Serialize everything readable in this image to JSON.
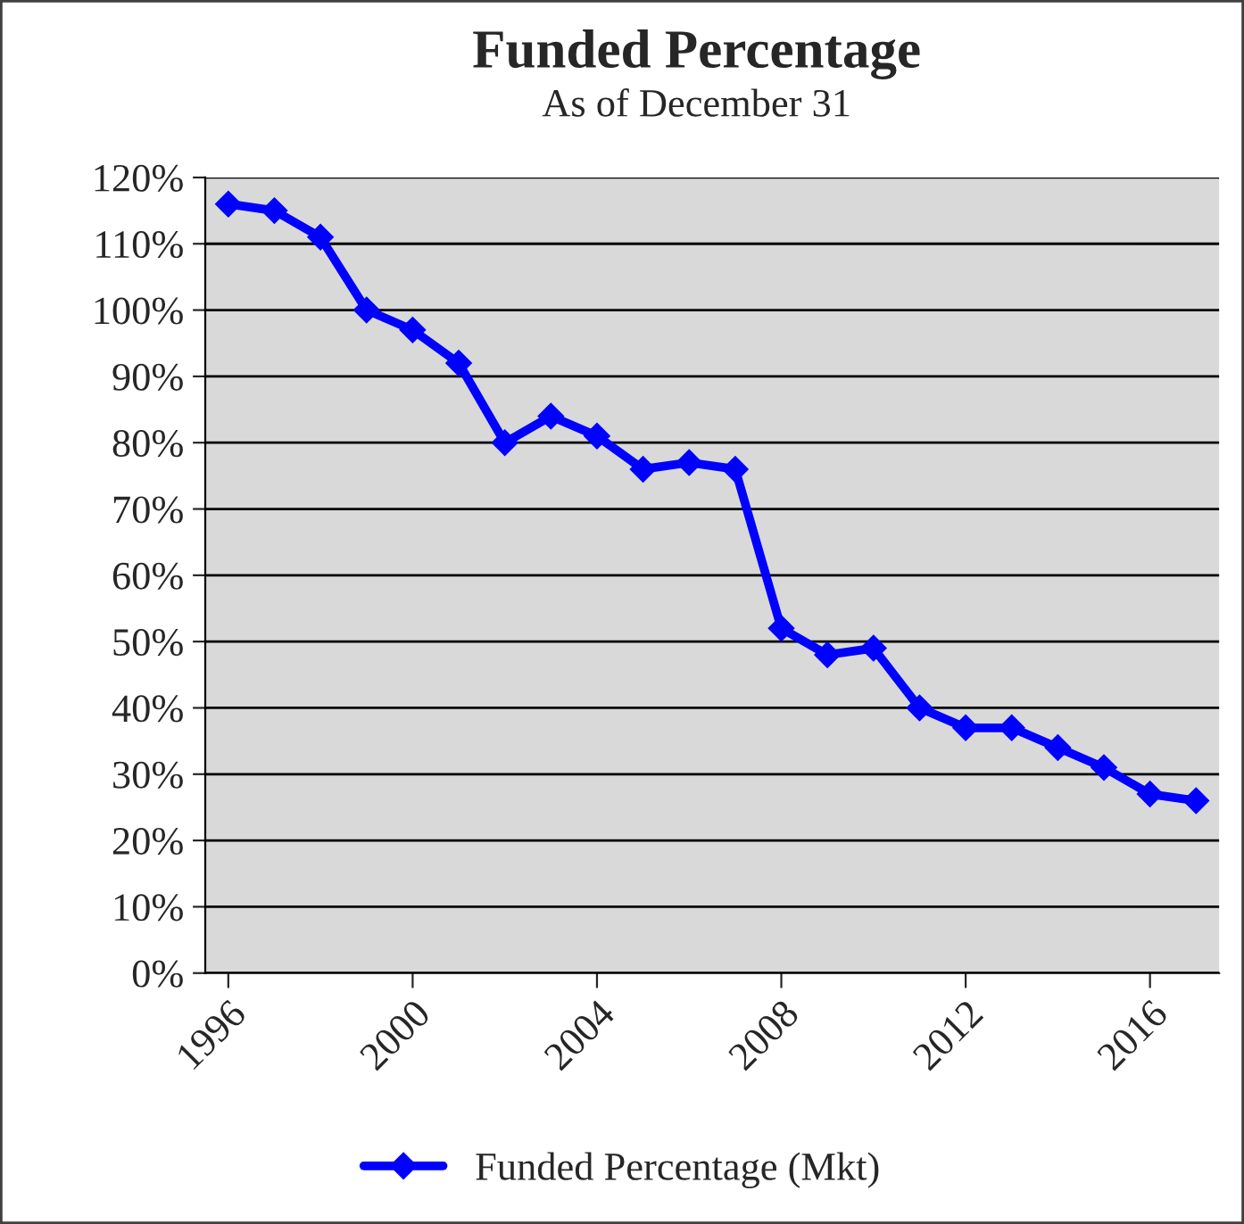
{
  "chart_data": {
    "type": "line",
    "title": "Funded Percentage",
    "subtitle": "As of December 31",
    "categories": [
      "1996",
      null,
      null,
      null,
      "2000",
      null,
      null,
      null,
      "2004",
      null,
      null,
      null,
      "2008",
      null,
      null,
      null,
      "2012",
      null,
      null,
      null,
      "2016",
      null
    ],
    "series": [
      {
        "name": "Funded Percentage (Mkt)",
        "color": "#0000ff",
        "values": [
          116,
          115,
          111,
          100,
          97,
          92,
          80,
          84,
          81,
          76,
          77,
          76,
          52,
          48,
          49,
          40,
          37,
          37,
          34,
          31,
          27,
          26
        ]
      }
    ],
    "ylim": [
      0,
      120
    ],
    "yticks": [
      {
        "value": 0,
        "label": "0%"
      },
      {
        "value": 10,
        "label": "10%"
      },
      {
        "value": 20,
        "label": "20%"
      },
      {
        "value": 30,
        "label": "30%"
      },
      {
        "value": 40,
        "label": "40%"
      },
      {
        "value": 50,
        "label": "50%"
      },
      {
        "value": 60,
        "label": "60%"
      },
      {
        "value": 70,
        "label": "70%"
      },
      {
        "value": 80,
        "label": "80%"
      },
      {
        "value": 90,
        "label": "90%"
      },
      {
        "value": 100,
        "label": "100%"
      },
      {
        "value": 110,
        "label": "110%"
      },
      {
        "value": 120,
        "label": "120%"
      }
    ],
    "grid": "y",
    "legend": "bottom",
    "marker": "diamond",
    "line_style": "solid"
  }
}
